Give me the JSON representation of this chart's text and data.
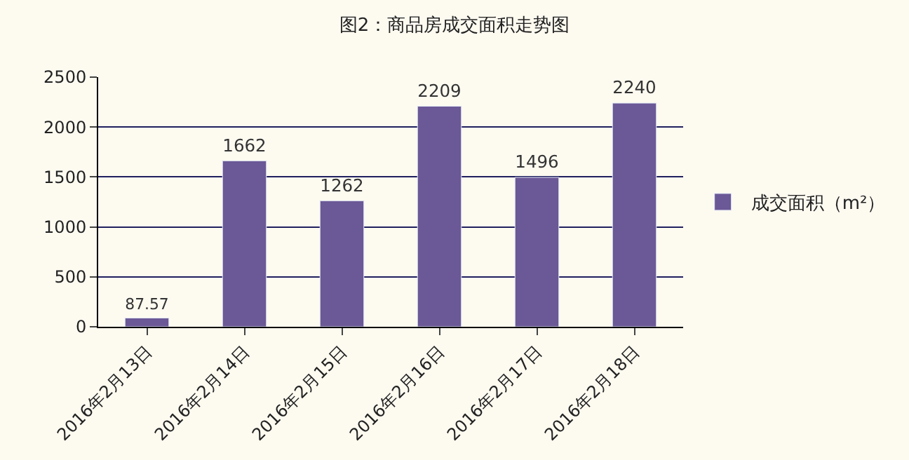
{
  "chart_data": {
    "type": "bar",
    "title": "图2：商品房成交面积走势图",
    "categories": [
      "2016年2月13日",
      "2016年2月14日",
      "2016年2月15日",
      "2016年2月16日",
      "2016年2月17日",
      "2016年2月18日"
    ],
    "series": [
      {
        "name": "成交面积（m²）",
        "color": "#6b5896",
        "values": [
          87.57,
          1662,
          1262,
          2209,
          1496,
          2240
        ]
      }
    ],
    "ylim": [
      0,
      2500
    ],
    "yticks": [
      0,
      500,
      1000,
      1500,
      2000,
      2500
    ],
    "grid": "y",
    "legend": "right",
    "data_labels": true
  }
}
